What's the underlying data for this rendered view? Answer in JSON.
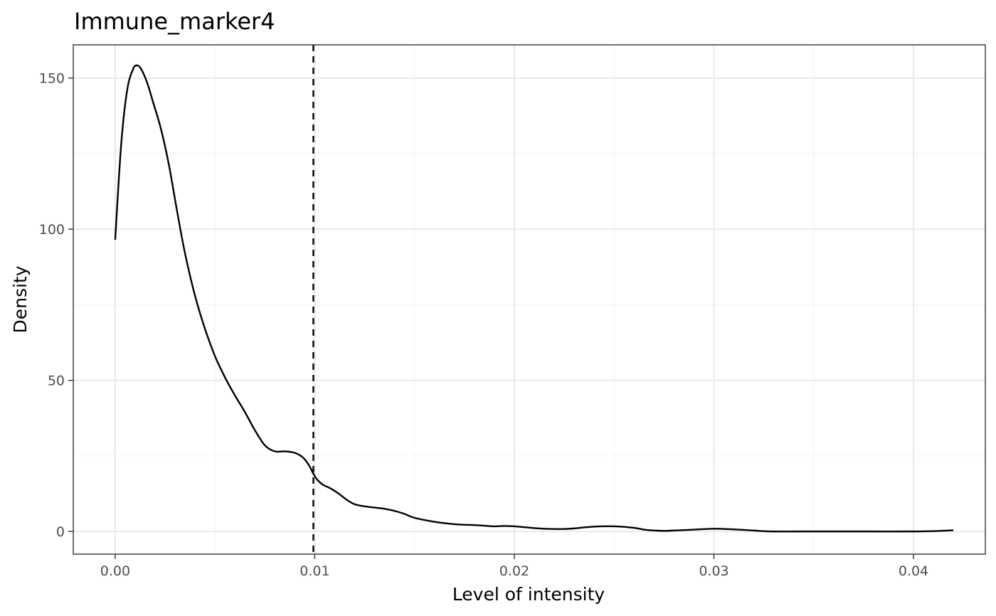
{
  "chart_data": {
    "type": "line",
    "title": "Immune_marker4",
    "xlabel": "Level of intensity",
    "ylabel": "Density",
    "xlim": [
      -0.0021,
      0.0436
    ],
    "ylim": [
      -7.5,
      161
    ],
    "x_ticks": [
      0.0,
      0.01,
      0.02,
      0.03,
      0.04
    ],
    "x_tick_labels": [
      "0.00",
      "0.01",
      "0.02",
      "0.03",
      "0.04"
    ],
    "y_ticks": [
      0,
      50,
      100,
      150
    ],
    "y_tick_labels": [
      "0",
      "50",
      "100",
      "150"
    ],
    "x_minor_ticks": [
      0.005,
      0.015,
      0.025,
      0.035
    ],
    "y_minor_ticks": [
      25,
      75,
      125
    ],
    "grid": true,
    "vline": {
      "x": 0.00993,
      "style": "dashed",
      "color": "#000000"
    },
    "series": [
      {
        "color": "#000000",
        "x": [
          0.0,
          0.0003,
          0.0006,
          0.0009,
          0.0011,
          0.0013,
          0.0016,
          0.0019,
          0.0023,
          0.0027,
          0.0031,
          0.0035,
          0.004,
          0.0045,
          0.005,
          0.0055,
          0.006,
          0.0065,
          0.007,
          0.0075,
          0.008,
          0.0085,
          0.009,
          0.0094,
          0.0097,
          0.0099,
          0.0101,
          0.0104,
          0.0108,
          0.0112,
          0.0116,
          0.012,
          0.0125,
          0.013,
          0.0135,
          0.014,
          0.0145,
          0.015,
          0.016,
          0.017,
          0.0176,
          0.018,
          0.0185,
          0.019,
          0.0195,
          0.02,
          0.0205,
          0.021,
          0.0215,
          0.022,
          0.0225,
          0.023,
          0.024,
          0.025,
          0.026,
          0.0265,
          0.027,
          0.0275,
          0.028,
          0.029,
          0.03,
          0.031,
          0.032,
          0.0325,
          0.033,
          0.034,
          0.035,
          0.036,
          0.038,
          0.04,
          0.041,
          0.042
        ],
        "y": [
          96.5,
          128,
          146,
          153,
          154.2,
          153,
          148.5,
          142,
          133,
          121,
          106,
          92,
          78,
          67,
          58,
          51,
          45,
          39.5,
          33.5,
          28.5,
          26.5,
          26.5,
          26.0,
          24.5,
          22,
          19.5,
          17.3,
          15.5,
          14.2,
          12.5,
          10.5,
          9.0,
          8.3,
          7.9,
          7.5,
          6.8,
          5.8,
          4.5,
          3.2,
          2.4,
          2.2,
          2.1,
          1.9,
          1.7,
          1.8,
          1.7,
          1.4,
          1.1,
          0.9,
          0.8,
          0.8,
          1.0,
          1.6,
          1.7,
          1.2,
          0.6,
          0.3,
          0.2,
          0.3,
          0.6,
          0.9,
          0.7,
          0.3,
          0.1,
          0.0,
          0.0,
          0.0,
          0.0,
          0.0,
          0.0,
          0.1,
          0.4
        ]
      }
    ]
  }
}
